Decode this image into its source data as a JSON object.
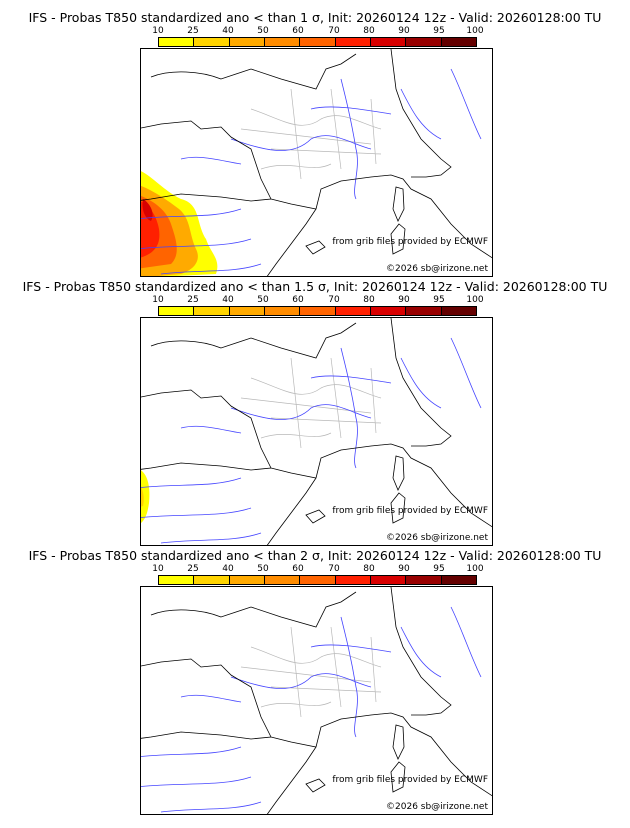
{
  "colorbar": {
    "ticks": [
      "10",
      "25",
      "40",
      "50",
      "60",
      "70",
      "80",
      "90",
      "95",
      "100"
    ],
    "colors": [
      "#ffff00",
      "#ffd400",
      "#ffaa00",
      "#ff8c00",
      "#ff6400",
      "#ff2000",
      "#d80000",
      "#980000",
      "#640000"
    ]
  },
  "panels": [
    {
      "title": "IFS - Probas T850  standardized ano < than 1 σ, Init: 20260124 12z - Valid: 20260128:00 TU",
      "coverage": "large"
    },
    {
      "title": "IFS - Probas T850  standardized ano < than 1.5 σ, Init: 20260124 12z - Valid: 20260128:00 TU",
      "coverage": "small"
    },
    {
      "title": "IFS - Probas T850  standardized ano < than 2 σ, Init: 20260124 12z - Valid: 20260128:00 TU",
      "coverage": "none"
    }
  ],
  "credits": {
    "source": "from grib files provided by ECMWF",
    "copyright": "©2026 sb@irizone.net"
  }
}
